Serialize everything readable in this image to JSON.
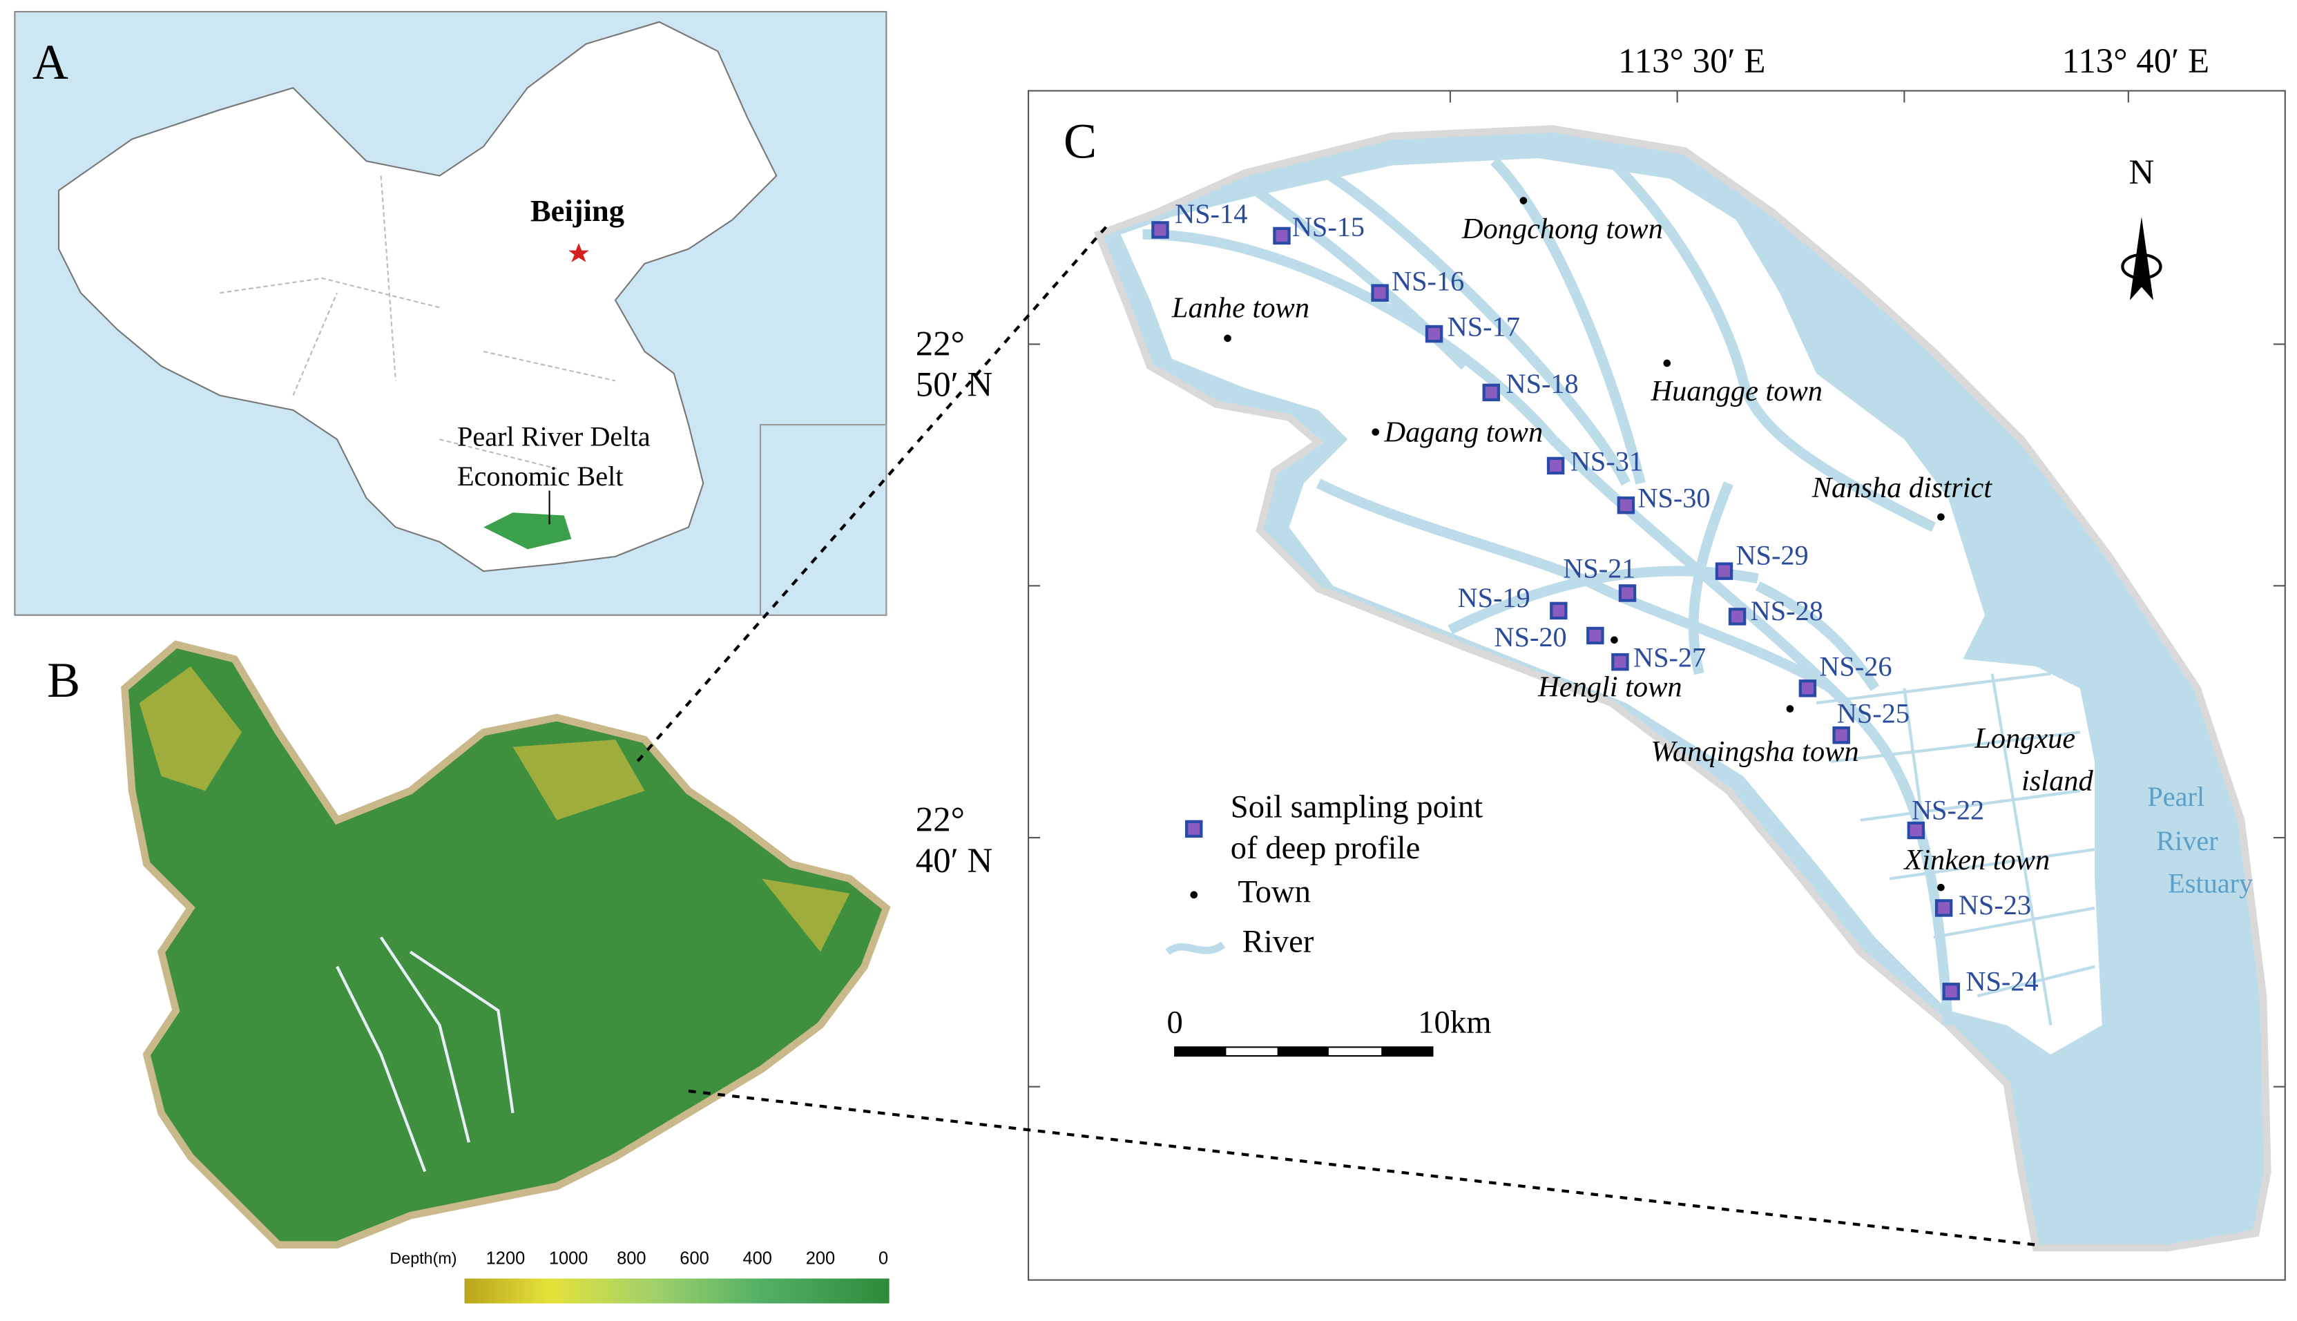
{
  "panels": {
    "a": {
      "label": "A",
      "capital": "Beijing",
      "region": [
        "Pearl River Delta",
        "Economic Belt"
      ]
    },
    "b": {
      "label": "B",
      "colorbar": {
        "title": "Depth(m)",
        "ticks": [
          1200,
          1000,
          800,
          600,
          400,
          200,
          0
        ]
      }
    },
    "c": {
      "label": "C",
      "lon_labels": [
        "113° 30′ E",
        "113° 40′ E"
      ],
      "lat_labels": [
        [
          "22°",
          "50′ N"
        ],
        [
          "22°",
          "40′ N"
        ]
      ],
      "north": "N",
      "sites": [
        "NS-14",
        "NS-15",
        "NS-16",
        "NS-17",
        "NS-18",
        "NS-31",
        "NS-30",
        "NS-29",
        "NS-21",
        "NS-19",
        "NS-28",
        "NS-20",
        "NS-27",
        "NS-26",
        "NS-25",
        "NS-22",
        "NS-23",
        "NS-24"
      ],
      "towns": [
        "Dongchong town",
        "Lanhe town",
        "Huangge town",
        "Dagang town",
        "Nansha district",
        "Hengli town",
        "Wanqingsha town",
        "Xinken town"
      ],
      "areas": [
        [
          "Longxue",
          "island"
        ],
        [
          "Pearl",
          "River",
          "Estuary"
        ]
      ],
      "legend": [
        [
          "Soil sampling point",
          "of deep profile"
        ],
        [
          "Town"
        ],
        [
          "River"
        ]
      ],
      "scale": {
        "start": "0",
        "end": "10km"
      }
    }
  }
}
